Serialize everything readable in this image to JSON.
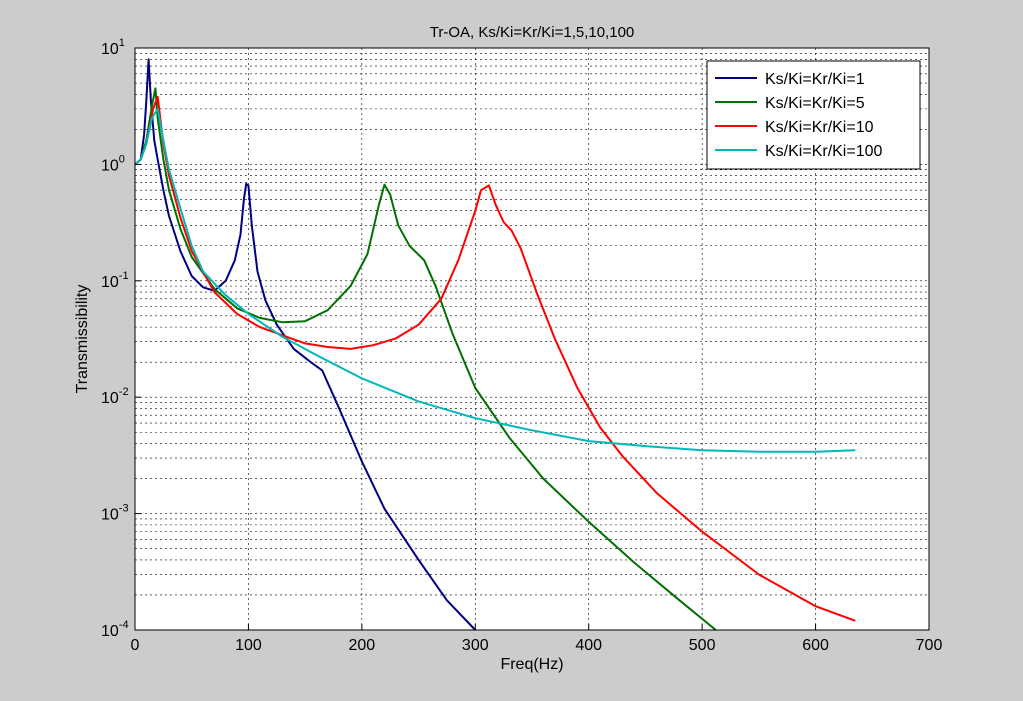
{
  "window": {
    "background": "#cccccc"
  },
  "chart_data": {
    "type": "line",
    "title": "Tr-OA, Ks/Ki=Kr/Ki=1,5,10,100",
    "xlabel": "Freq(Hz)",
    "ylabel": "Transmissibility",
    "xlim": [
      0,
      700
    ],
    "ylim": [
      0.0001,
      10
    ],
    "yscale": "log",
    "grid": "on",
    "x_ticks": [
      "0",
      "100",
      "200",
      "300",
      "400",
      "500",
      "600",
      "700"
    ],
    "y_ticks": [
      {
        "base": "10",
        "exp": "1"
      },
      {
        "base": "10",
        "exp": "0"
      },
      {
        "base": "10",
        "exp": "-1"
      },
      {
        "base": "10",
        "exp": "-2"
      },
      {
        "base": "10",
        "exp": "-3"
      },
      {
        "base": "10",
        "exp": "-4"
      }
    ],
    "legend_position": "top-right",
    "series": [
      {
        "name": "Ks/Ki=Kr/Ki=1",
        "color": "#000080",
        "points": [
          [
            0,
            1.0
          ],
          [
            5,
            1.1
          ],
          [
            8,
            1.8
          ],
          [
            10,
            3.5
          ],
          [
            12,
            8.0
          ],
          [
            14,
            3.5
          ],
          [
            17,
            1.6
          ],
          [
            20,
            1.1
          ],
          [
            25,
            0.6
          ],
          [
            30,
            0.36
          ],
          [
            40,
            0.18
          ],
          [
            50,
            0.11
          ],
          [
            60,
            0.088
          ],
          [
            70,
            0.082
          ],
          [
            80,
            0.1
          ],
          [
            88,
            0.15
          ],
          [
            93,
            0.25
          ],
          [
            96,
            0.5
          ],
          [
            98,
            0.68
          ],
          [
            100,
            0.66
          ],
          [
            103,
            0.3
          ],
          [
            108,
            0.12
          ],
          [
            115,
            0.068
          ],
          [
            125,
            0.042
          ],
          [
            140,
            0.026
          ],
          [
            155,
            0.02
          ],
          [
            165,
            0.017
          ],
          [
            180,
            0.008
          ],
          [
            200,
            0.0028
          ],
          [
            220,
            0.0011
          ],
          [
            250,
            0.0004
          ],
          [
            275,
            0.00018
          ],
          [
            300,
            0.0001
          ]
        ]
      },
      {
        "name": "Ks/Ki=Kr/Ki=5",
        "color": "#007000",
        "points": [
          [
            0,
            1.0
          ],
          [
            5,
            1.1
          ],
          [
            10,
            1.6
          ],
          [
            15,
            3.2
          ],
          [
            18,
            4.5
          ],
          [
            20,
            2.5
          ],
          [
            25,
            1.1
          ],
          [
            30,
            0.6
          ],
          [
            40,
            0.28
          ],
          [
            50,
            0.16
          ],
          [
            70,
            0.085
          ],
          [
            90,
            0.058
          ],
          [
            110,
            0.048
          ],
          [
            130,
            0.044
          ],
          [
            150,
            0.045
          ],
          [
            170,
            0.056
          ],
          [
            190,
            0.09
          ],
          [
            205,
            0.17
          ],
          [
            215,
            0.45
          ],
          [
            220,
            0.67
          ],
          [
            225,
            0.55
          ],
          [
            232,
            0.3
          ],
          [
            242,
            0.2
          ],
          [
            255,
            0.15
          ],
          [
            265,
            0.09
          ],
          [
            280,
            0.035
          ],
          [
            300,
            0.012
          ],
          [
            330,
            0.0045
          ],
          [
            360,
            0.002
          ],
          [
            400,
            0.00085
          ],
          [
            440,
            0.00038
          ],
          [
            480,
            0.00018
          ],
          [
            512,
            0.0001
          ]
        ]
      },
      {
        "name": "Ks/Ki=Kr/Ki=10",
        "color": "#ff0000",
        "points": [
          [
            0,
            1.0
          ],
          [
            5,
            1.1
          ],
          [
            10,
            1.5
          ],
          [
            16,
            3.0
          ],
          [
            20,
            3.8
          ],
          [
            25,
            1.5
          ],
          [
            30,
            0.8
          ],
          [
            40,
            0.35
          ],
          [
            50,
            0.18
          ],
          [
            70,
            0.08
          ],
          [
            90,
            0.052
          ],
          [
            110,
            0.04
          ],
          [
            130,
            0.034
          ],
          [
            150,
            0.029
          ],
          [
            170,
            0.027
          ],
          [
            190,
            0.026
          ],
          [
            210,
            0.028
          ],
          [
            230,
            0.032
          ],
          [
            250,
            0.042
          ],
          [
            270,
            0.07
          ],
          [
            285,
            0.15
          ],
          [
            300,
            0.4
          ],
          [
            305,
            0.6
          ],
          [
            312,
            0.66
          ],
          [
            318,
            0.45
          ],
          [
            325,
            0.32
          ],
          [
            332,
            0.27
          ],
          [
            340,
            0.19
          ],
          [
            355,
            0.075
          ],
          [
            370,
            0.032
          ],
          [
            390,
            0.012
          ],
          [
            410,
            0.0055
          ],
          [
            430,
            0.0031
          ],
          [
            460,
            0.0015
          ],
          [
            500,
            0.0007
          ],
          [
            550,
            0.0003
          ],
          [
            600,
            0.00016
          ],
          [
            635,
            0.00012
          ]
        ]
      },
      {
        "name": "Ks/Ki=Kr/Ki=100",
        "color": "#00b8b8",
        "points": [
          [
            0,
            1.0
          ],
          [
            5,
            1.1
          ],
          [
            10,
            1.5
          ],
          [
            15,
            2.5
          ],
          [
            20,
            3.0
          ],
          [
            25,
            1.6
          ],
          [
            30,
            0.9
          ],
          [
            40,
            0.42
          ],
          [
            50,
            0.2
          ],
          [
            60,
            0.12
          ],
          [
            80,
            0.075
          ],
          [
            100,
            0.052
          ],
          [
            130,
            0.033
          ],
          [
            160,
            0.023
          ],
          [
            200,
            0.0145
          ],
          [
            250,
            0.0092
          ],
          [
            300,
            0.0066
          ],
          [
            350,
            0.0052
          ],
          [
            400,
            0.0042
          ],
          [
            450,
            0.0038
          ],
          [
            500,
            0.0035
          ],
          [
            550,
            0.0034
          ],
          [
            600,
            0.0034
          ],
          [
            635,
            0.0035
          ]
        ]
      }
    ]
  }
}
